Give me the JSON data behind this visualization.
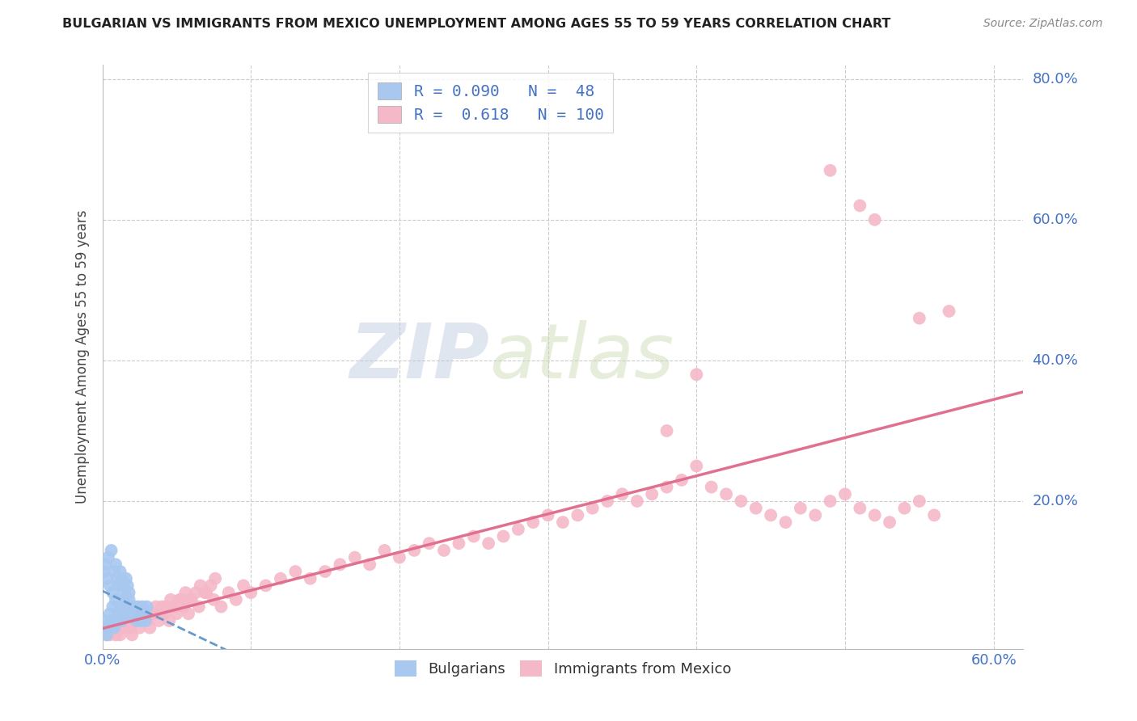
{
  "title": "BULGARIAN VS IMMIGRANTS FROM MEXICO UNEMPLOYMENT AMONG AGES 55 TO 59 YEARS CORRELATION CHART",
  "source": "Source: ZipAtlas.com",
  "ylabel": "Unemployment Among Ages 55 to 59 years",
  "xlim": [
    0.0,
    0.62
  ],
  "ylim": [
    -0.01,
    0.82
  ],
  "grid_color": "#cccccc",
  "background_color": "#ffffff",
  "watermark_zip": "ZIP",
  "watermark_atlas": "atlas",
  "legend_R1": "0.090",
  "legend_N1": "48",
  "legend_R2": "0.618",
  "legend_N2": "100",
  "color_bulgarian": "#a8c8f0",
  "color_mexico": "#f5b8c8",
  "color_text_blue": "#4472c4",
  "trendline_bulgarian_color": "#6699cc",
  "trendline_mexico_color": "#e07090",
  "bulgarian_x": [
    0.001,
    0.002,
    0.003,
    0.004,
    0.005,
    0.006,
    0.007,
    0.008,
    0.009,
    0.01,
    0.011,
    0.012,
    0.013,
    0.014,
    0.015,
    0.016,
    0.017,
    0.018,
    0.019,
    0.02,
    0.021,
    0.022,
    0.023,
    0.024,
    0.025,
    0.026,
    0.027,
    0.028,
    0.029,
    0.03,
    0.001,
    0.002,
    0.003,
    0.004,
    0.005,
    0.006,
    0.007,
    0.008,
    0.009,
    0.01,
    0.011,
    0.012,
    0.013,
    0.014,
    0.015,
    0.016,
    0.017,
    0.018
  ],
  "bulgarian_y": [
    0.02,
    0.03,
    0.01,
    0.02,
    0.04,
    0.03,
    0.05,
    0.02,
    0.06,
    0.03,
    0.04,
    0.05,
    0.03,
    0.04,
    0.06,
    0.05,
    0.04,
    0.06,
    0.05,
    0.04,
    0.05,
    0.04,
    0.03,
    0.05,
    0.04,
    0.03,
    0.05,
    0.04,
    0.03,
    0.05,
    0.1,
    0.11,
    0.09,
    0.12,
    0.08,
    0.13,
    0.07,
    0.1,
    0.11,
    0.09,
    0.08,
    0.1,
    0.09,
    0.08,
    0.07,
    0.09,
    0.08,
    0.07
  ],
  "mexico_x": [
    0.005,
    0.008,
    0.01,
    0.012,
    0.015,
    0.018,
    0.02,
    0.022,
    0.025,
    0.028,
    0.03,
    0.032,
    0.035,
    0.038,
    0.04,
    0.042,
    0.045,
    0.048,
    0.05,
    0.052,
    0.055,
    0.058,
    0.06,
    0.065,
    0.07,
    0.075,
    0.08,
    0.085,
    0.09,
    0.095,
    0.1,
    0.11,
    0.12,
    0.13,
    0.14,
    0.15,
    0.16,
    0.17,
    0.18,
    0.19,
    0.2,
    0.21,
    0.22,
    0.23,
    0.24,
    0.25,
    0.26,
    0.27,
    0.28,
    0.29,
    0.3,
    0.31,
    0.32,
    0.33,
    0.34,
    0.35,
    0.36,
    0.37,
    0.38,
    0.39,
    0.4,
    0.41,
    0.42,
    0.43,
    0.44,
    0.45,
    0.46,
    0.47,
    0.48,
    0.49,
    0.5,
    0.51,
    0.52,
    0.53,
    0.54,
    0.55,
    0.56,
    0.003,
    0.006,
    0.009,
    0.013,
    0.016,
    0.019,
    0.023,
    0.026,
    0.029,
    0.033,
    0.036,
    0.039,
    0.043,
    0.046,
    0.049,
    0.053,
    0.056,
    0.059,
    0.063,
    0.066,
    0.069,
    0.073,
    0.076
  ],
  "mexico_y": [
    0.01,
    0.02,
    0.02,
    0.01,
    0.03,
    0.02,
    0.01,
    0.03,
    0.02,
    0.04,
    0.03,
    0.02,
    0.04,
    0.03,
    0.05,
    0.04,
    0.03,
    0.05,
    0.04,
    0.06,
    0.05,
    0.04,
    0.06,
    0.05,
    0.07,
    0.06,
    0.05,
    0.07,
    0.06,
    0.08,
    0.07,
    0.08,
    0.09,
    0.1,
    0.09,
    0.1,
    0.11,
    0.12,
    0.11,
    0.13,
    0.12,
    0.13,
    0.14,
    0.13,
    0.14,
    0.15,
    0.14,
    0.15,
    0.16,
    0.17,
    0.18,
    0.17,
    0.18,
    0.19,
    0.2,
    0.21,
    0.2,
    0.21,
    0.22,
    0.23,
    0.25,
    0.22,
    0.21,
    0.2,
    0.19,
    0.18,
    0.17,
    0.19,
    0.18,
    0.2,
    0.21,
    0.19,
    0.18,
    0.17,
    0.19,
    0.2,
    0.18,
    0.01,
    0.02,
    0.01,
    0.02,
    0.03,
    0.02,
    0.03,
    0.04,
    0.03,
    0.04,
    0.05,
    0.04,
    0.05,
    0.06,
    0.05,
    0.06,
    0.07,
    0.06,
    0.07,
    0.08,
    0.07,
    0.08,
    0.09
  ],
  "mexico_outliers_x": [
    0.49,
    0.51,
    0.52,
    0.57,
    0.4,
    0.38,
    0.55
  ],
  "mexico_outliers_y": [
    0.67,
    0.62,
    0.6,
    0.47,
    0.38,
    0.3,
    0.46
  ]
}
